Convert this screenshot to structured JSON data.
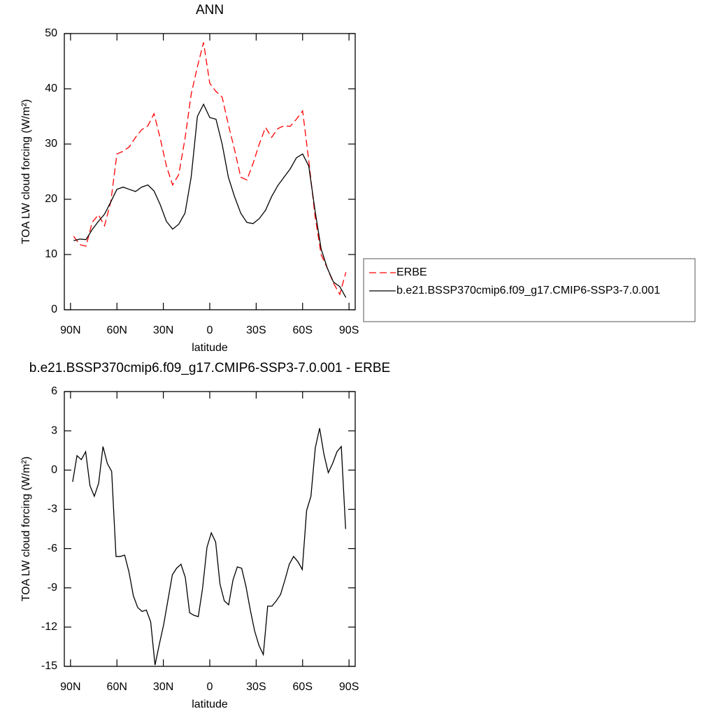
{
  "chart_data": [
    {
      "type": "line",
      "title": "ANN",
      "xlabel": "latitude",
      "ylabel": "TOA LW cloud forcing (W/m²)",
      "x": [
        88,
        84,
        80,
        76,
        72,
        68,
        64,
        60,
        56,
        52,
        48,
        44,
        40,
        36,
        32,
        28,
        24,
        20,
        16,
        12,
        8,
        4,
        0,
        -4,
        -8,
        -12,
        -16,
        -20,
        -24,
        -28,
        -32,
        -36,
        -40,
        -44,
        -48,
        -52,
        -56,
        -60,
        -64,
        -68,
        -72,
        -76,
        -80,
        -84,
        -88
      ],
      "series": [
        {
          "name": "ERBE",
          "color": "#ff0000",
          "style": "dashed",
          "values": [
            13.3,
            11.8,
            11.5,
            15.8,
            17.2,
            15.2,
            19.5,
            28.2,
            28.7,
            29.5,
            31.2,
            32.6,
            33.3,
            35.5,
            31,
            26,
            22.6,
            24.5,
            31,
            39,
            44,
            48.4,
            41,
            39.5,
            38.5,
            33.5,
            29,
            24,
            23.5,
            26.5,
            30,
            33,
            31.2,
            32.8,
            33.3,
            33.2,
            34.5,
            36,
            27,
            17,
            10,
            7.5,
            4.8,
            2.8,
            6.8
          ]
        },
        {
          "name": "b.e21.BSSP370cmip6.f09_g17.CMIP6-SSP3-7.0.001",
          "color": "#000000",
          "style": "solid",
          "values": [
            12.5,
            12.8,
            12.7,
            14.5,
            16,
            17.3,
            19.5,
            21.8,
            22.2,
            21.8,
            21.4,
            22.2,
            22.6,
            21.5,
            19,
            16,
            14.6,
            15.5,
            17.5,
            24,
            35,
            37.2,
            34.8,
            34.5,
            30,
            24,
            20.5,
            17.5,
            15.8,
            15.6,
            16.5,
            18,
            20.5,
            22.5,
            24,
            25.5,
            27.5,
            28.2,
            26,
            18,
            11,
            7.5,
            5,
            4.2,
            2.2
          ]
        }
      ],
      "xlim": [
        94,
        -94
      ],
      "ylim": [
        0,
        50
      ],
      "xticks": [
        {
          "value": 90,
          "label": "90N"
        },
        {
          "value": 60,
          "label": "60N"
        },
        {
          "value": 30,
          "label": "30N"
        },
        0,
        {
          "value": -30,
          "label": "30S"
        },
        {
          "value": -60,
          "label": "60S"
        },
        {
          "value": -90,
          "label": "90S"
        }
      ],
      "yticks": [
        0,
        10,
        20,
        30,
        40,
        50
      ],
      "legend": "right"
    },
    {
      "type": "line",
      "title": "b.e21.BSSP370cmip6.f09_g17.CMIP6-SSP3-7.0.001 - ERBE",
      "xlabel": "latitude",
      "ylabel": "TOA LW cloud forcing (W/m²)",
      "x": [
        88.6,
        85.8,
        83,
        80.2,
        77.4,
        74.6,
        71.8,
        69,
        66.2,
        63.4,
        60.6,
        57.8,
        55,
        52.2,
        49.4,
        46.6,
        43.8,
        41,
        38.2,
        35.4,
        32.6,
        29.8,
        27,
        24.2,
        21.4,
        18.6,
        15.8,
        13,
        10.2,
        7.4,
        4.6,
        1.8,
        -1,
        -3.8,
        -6.6,
        -9.4,
        -12.2,
        -15,
        -17.8,
        -20.6,
        -23.4,
        -26.2,
        -29,
        -31.8,
        -34.6,
        -37.4,
        -40.2,
        -43,
        -45.8,
        -48.6,
        -51.4,
        -54.2,
        -57,
        -59.8,
        -62.6,
        -65.4,
        -68.2,
        -71,
        -73.8,
        -76.6,
        -79.4,
        -82.2,
        -85,
        -87.8
      ],
      "series": [
        {
          "color": "#000000",
          "style": "solid",
          "values": [
            -0.9,
            1.1,
            0.8,
            1.4,
            -1.2,
            -2,
            -1,
            1.8,
            0.5,
            -0.1,
            -6.6,
            -6.6,
            -6.5,
            -7.8,
            -9.6,
            -10.5,
            -10.8,
            -10.7,
            -11.6,
            -14.9,
            -13.3,
            -11.8,
            -9.9,
            -8,
            -7.5,
            -7.2,
            -8.2,
            -10.9,
            -11.1,
            -11.2,
            -9,
            -5.9,
            -4.8,
            -5.5,
            -8.7,
            -10,
            -10.3,
            -8.4,
            -7.4,
            -7.5,
            -8.9,
            -10.7,
            -12.3,
            -13.4,
            -14.1,
            -10.4,
            -10.4,
            -10,
            -9.5,
            -8.4,
            -7.2,
            -6.6,
            -7,
            -7.6,
            -3.1,
            -2,
            1.7,
            3.2,
            1.2,
            -0.2,
            0.5,
            1.4,
            1.8,
            -4.5
          ]
        }
      ],
      "xlim": [
        94,
        -94
      ],
      "ylim": [
        -15,
        6
      ],
      "xticks": [
        {
          "value": 90,
          "label": "90N"
        },
        {
          "value": 60,
          "label": "60N"
        },
        {
          "value": 30,
          "label": "30N"
        },
        0,
        {
          "value": -30,
          "label": "30S"
        },
        {
          "value": -60,
          "label": "60S"
        },
        {
          "value": -90,
          "label": "90S"
        }
      ],
      "yticks": [
        -15,
        -12,
        -9,
        -6,
        -3,
        0,
        3,
        6
      ]
    }
  ]
}
